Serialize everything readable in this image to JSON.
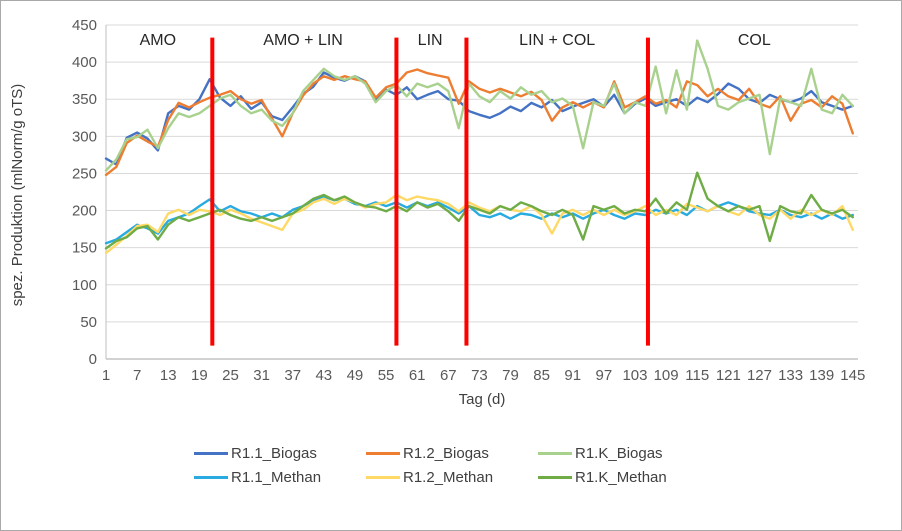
{
  "window": {
    "background": "#ffffff",
    "border_color": "#a9a9a9"
  },
  "chart_data": {
    "type": "line",
    "title": "",
    "xlabel": "Tag (d)",
    "ylabel": "spez. Produktion (mlNorm/g oTS)",
    "xlim": [
      1,
      146
    ],
    "ylim": [
      0,
      450
    ],
    "grid": "horizontal-only",
    "gridline_color": "#d9d9d9",
    "axis_line_color": "#bfbfbf",
    "axis_text_color": "#595959",
    "legend_position": "bottom",
    "yticks": [
      0,
      50,
      100,
      150,
      200,
      250,
      300,
      350,
      400,
      450
    ],
    "xticks": [
      1,
      7,
      13,
      19,
      25,
      31,
      37,
      43,
      49,
      55,
      61,
      67,
      73,
      79,
      85,
      91,
      97,
      103,
      109,
      115,
      121,
      127,
      133,
      139,
      145
    ],
    "phase_dividers": {
      "color": "#ff0000",
      "days": [
        21.5,
        57,
        70.5,
        105.5
      ],
      "value_top": 433,
      "value_bottom": 18
    },
    "phases": [
      {
        "label": "AMO",
        "center_day": 11
      },
      {
        "label": "AMO + LIN",
        "center_day": 39
      },
      {
        "label": "LIN",
        "center_day": 63.5
      },
      {
        "label": "LIN + COL",
        "center_day": 88
      },
      {
        "label": "COL",
        "center_day": 126
      }
    ],
    "x": [
      1,
      3,
      5,
      7,
      9,
      11,
      13,
      15,
      17,
      19,
      21,
      23,
      25,
      27,
      29,
      31,
      33,
      35,
      37,
      39,
      41,
      43,
      45,
      47,
      49,
      51,
      53,
      55,
      57,
      59,
      61,
      63,
      65,
      67,
      69,
      71,
      73,
      75,
      77,
      79,
      81,
      83,
      85,
      87,
      89,
      91,
      93,
      95,
      97,
      99,
      101,
      103,
      105,
      107,
      109,
      111,
      113,
      115,
      117,
      119,
      121,
      123,
      125,
      127,
      129,
      131,
      133,
      135,
      137,
      139,
      141,
      143,
      145
    ],
    "series": [
      {
        "name": "R1.1_Biogas",
        "color": "#4472c4",
        "values": [
          270,
          262,
          298,
          305,
          297,
          281,
          331,
          341,
          336,
          350,
          377,
          352,
          341,
          354,
          337,
          346,
          327,
          322,
          339,
          357,
          367,
          386,
          379,
          375,
          381,
          374,
          349,
          363,
          356,
          366,
          350,
          356,
          361,
          350,
          348,
          334,
          329,
          325,
          331,
          340,
          334,
          345,
          339,
          349,
          334,
          340,
          345,
          350,
          340,
          356,
          331,
          344,
          351,
          341,
          346,
          350,
          341,
          352,
          346,
          357,
          371,
          364,
          350,
          345,
          356,
          350,
          346,
          351,
          361,
          346,
          341,
          336,
          341
        ]
      },
      {
        "name": "R1.2_Biogas",
        "color": "#ed7d31",
        "values": [
          248,
          259,
          291,
          301,
          293,
          286,
          322,
          345,
          339,
          346,
          352,
          356,
          361,
          350,
          344,
          349,
          324,
          300,
          331,
          355,
          371,
          381,
          376,
          381,
          377,
          374,
          352,
          366,
          371,
          386,
          390,
          385,
          382,
          379,
          344,
          374,
          364,
          359,
          364,
          359,
          354,
          360,
          349,
          321,
          339,
          346,
          339,
          346,
          339,
          374,
          339,
          346,
          354,
          344,
          349,
          339,
          374,
          369,
          354,
          364,
          354,
          349,
          364,
          344,
          339,
          354,
          321,
          344,
          349,
          339,
          354,
          344,
          304
        ]
      },
      {
        "name": "R1.K_Biogas",
        "color": "#a9d18e",
        "values": [
          254,
          269,
          296,
          299,
          309,
          284,
          311,
          331,
          326,
          331,
          341,
          351,
          356,
          341,
          331,
          336,
          321,
          314,
          331,
          361,
          376,
          391,
          381,
          376,
          381,
          371,
          346,
          361,
          369,
          354,
          371,
          366,
          371,
          361,
          311,
          371,
          354,
          346,
          361,
          351,
          366,
          356,
          361,
          346,
          351,
          341,
          284,
          346,
          341,
          371,
          331,
          346,
          341,
          394,
          331,
          389,
          336,
          429,
          391,
          341,
          336,
          346,
          351,
          356,
          276,
          351,
          346,
          341,
          391,
          336,
          331,
          356,
          341
        ]
      },
      {
        "name": "R1.1_Methan",
        "color": "#29abe2",
        "values": [
          156,
          161,
          171,
          181,
          176,
          169,
          186,
          191,
          196,
          206,
          215,
          199,
          206,
          199,
          196,
          191,
          196,
          191,
          201,
          206,
          214,
          219,
          214,
          216,
          209,
          206,
          211,
          206,
          211,
          204,
          211,
          206,
          211,
          204,
          196,
          206,
          194,
          191,
          196,
          189,
          196,
          194,
          189,
          196,
          191,
          196,
          189,
          196,
          201,
          194,
          189,
          196,
          194,
          201,
          196,
          201,
          194,
          206,
          199,
          206,
          211,
          206,
          199,
          196,
          194,
          201,
          194,
          191,
          196,
          189,
          196,
          189,
          194
        ]
      },
      {
        "name": "R1.2_Methan",
        "color": "#ffd966",
        "values": [
          143,
          154,
          166,
          179,
          181,
          171,
          196,
          201,
          194,
          201,
          199,
          194,
          201,
          196,
          189,
          184,
          179,
          174,
          196,
          201,
          211,
          216,
          209,
          216,
          211,
          204,
          209,
          211,
          221,
          214,
          219,
          216,
          214,
          209,
          199,
          211,
          204,
          199,
          206,
          201,
          199,
          206,
          194,
          169,
          196,
          201,
          194,
          201,
          194,
          201,
          194,
          199,
          206,
          194,
          201,
          194,
          209,
          204,
          199,
          206,
          199,
          194,
          206,
          194,
          189,
          201,
          189,
          201,
          194,
          201,
          194,
          206,
          174
        ]
      },
      {
        "name": "R1.K_Methan",
        "color": "#6fac46",
        "values": [
          149,
          159,
          164,
          176,
          179,
          161,
          181,
          191,
          186,
          191,
          196,
          201,
          194,
          189,
          186,
          191,
          186,
          191,
          196,
          206,
          216,
          221,
          214,
          219,
          211,
          206,
          204,
          199,
          206,
          199,
          211,
          204,
          209,
          199,
          186,
          206,
          201,
          196,
          206,
          201,
          211,
          206,
          199,
          194,
          201,
          194,
          161,
          206,
          201,
          206,
          196,
          201,
          199,
          216,
          196,
          211,
          201,
          251,
          216,
          206,
          199,
          206,
          201,
          206,
          159,
          206,
          199,
          196,
          221,
          201,
          196,
          201,
          191
        ]
      }
    ]
  }
}
